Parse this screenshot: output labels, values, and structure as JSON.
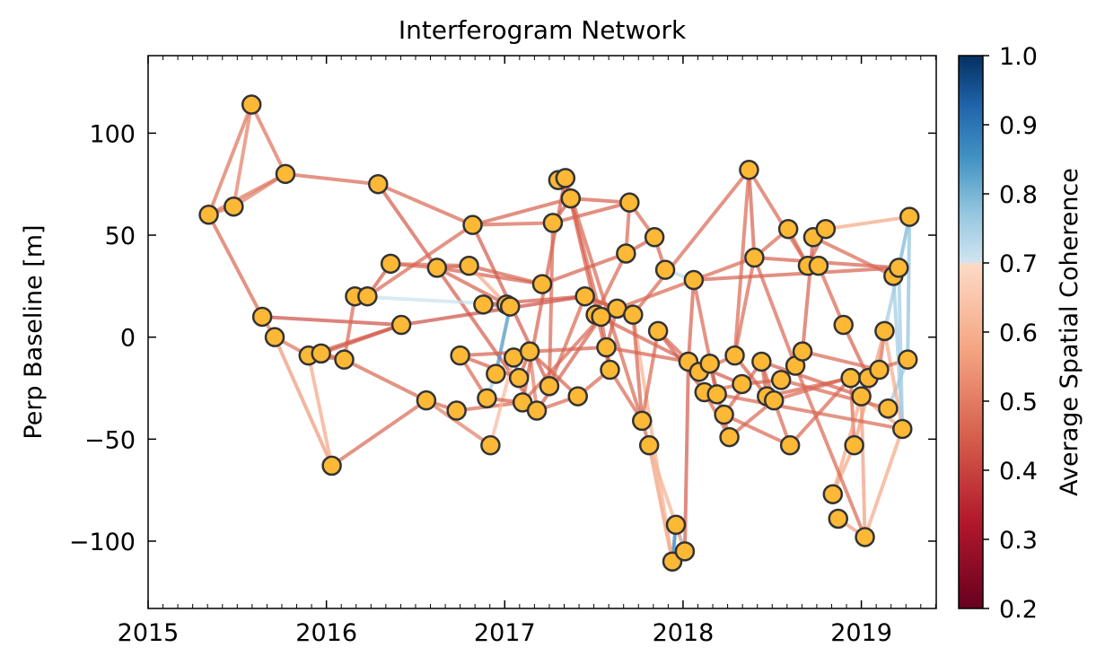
{
  "chart_data": {
    "type": "scatter",
    "title": "Interferogram Network",
    "xlabel": "",
    "ylabel": "Perp Baseline [m]",
    "xlim": [
      2015.0,
      2019.42
    ],
    "ylim": [
      -133,
      138
    ],
    "xticks": [
      2015,
      2016,
      2017,
      2018,
      2019
    ],
    "xtick_labels": [
      "2015",
      "2016",
      "2017",
      "2018",
      "2019"
    ],
    "yticks": [
      -100,
      -50,
      0,
      50,
      100
    ],
    "ytick_labels": [
      "−100",
      "−50",
      "0",
      "50",
      "100"
    ],
    "grid": false,
    "marker_fill": "#fdb836",
    "marker_edge": "#333333",
    "colorbar": {
      "label": "Average Spatial Coherence",
      "range": [
        0.2,
        1.0
      ],
      "ticks": [
        0.2,
        0.3,
        0.4,
        0.5,
        0.6,
        0.7,
        0.8,
        0.9,
        1.0
      ],
      "tick_labels": [
        "0.2",
        "0.3",
        "0.4",
        "0.5",
        "0.6",
        "0.7",
        "0.8",
        "0.9",
        "1.0"
      ],
      "colors_low": [
        "#67001f",
        "#b2182b",
        "#d6604d",
        "#f4a582",
        "#fddbc7"
      ],
      "colors_high": [
        "#d1e5f0",
        "#92c5de",
        "#4393c3",
        "#2166ac",
        "#053061"
      ],
      "split": 0.7
    },
    "points": [
      [
        2015.34,
        60
      ],
      [
        2015.48,
        64
      ],
      [
        2015.58,
        114
      ],
      [
        2015.64,
        10
      ],
      [
        2015.71,
        0
      ],
      [
        2015.77,
        80
      ],
      [
        2015.9,
        -9
      ],
      [
        2015.97,
        -8
      ],
      [
        2016.03,
        -63
      ],
      [
        2016.1,
        -11
      ],
      [
        2016.16,
        20
      ],
      [
        2016.23,
        20
      ],
      [
        2016.29,
        75
      ],
      [
        2016.36,
        36
      ],
      [
        2016.42,
        6
      ],
      [
        2016.56,
        -31
      ],
      [
        2016.62,
        34
      ],
      [
        2016.73,
        -36
      ],
      [
        2016.75,
        -9
      ],
      [
        2016.8,
        35
      ],
      [
        2016.82,
        55
      ],
      [
        2016.88,
        16
      ],
      [
        2016.9,
        -30
      ],
      [
        2016.92,
        -53
      ],
      [
        2016.95,
        -18
      ],
      [
        2017.01,
        16
      ],
      [
        2017.03,
        15
      ],
      [
        2017.05,
        -10
      ],
      [
        2017.08,
        -20
      ],
      [
        2017.1,
        -32
      ],
      [
        2017.14,
        -7
      ],
      [
        2017.18,
        -36
      ],
      [
        2017.21,
        26
      ],
      [
        2017.25,
        -24
      ],
      [
        2017.27,
        56
      ],
      [
        2017.3,
        77
      ],
      [
        2017.34,
        78
      ],
      [
        2017.37,
        68
      ],
      [
        2017.41,
        -29
      ],
      [
        2017.45,
        20
      ],
      [
        2017.51,
        11
      ],
      [
        2017.54,
        10
      ],
      [
        2017.57,
        -5
      ],
      [
        2017.59,
        -16
      ],
      [
        2017.63,
        14
      ],
      [
        2017.68,
        41
      ],
      [
        2017.7,
        66
      ],
      [
        2017.72,
        11
      ],
      [
        2017.77,
        -41
      ],
      [
        2017.81,
        -53
      ],
      [
        2017.84,
        49
      ],
      [
        2017.86,
        3
      ],
      [
        2017.9,
        33
      ],
      [
        2017.94,
        -110
      ],
      [
        2017.96,
        -92
      ],
      [
        2018.01,
        -105
      ],
      [
        2018.03,
        -12
      ],
      [
        2018.06,
        28
      ],
      [
        2018.09,
        -17
      ],
      [
        2018.12,
        -27
      ],
      [
        2018.15,
        -13
      ],
      [
        2018.19,
        -28
      ],
      [
        2018.23,
        -38
      ],
      [
        2018.26,
        -49
      ],
      [
        2018.29,
        -9
      ],
      [
        2018.33,
        -23
      ],
      [
        2018.37,
        82
      ],
      [
        2018.4,
        39
      ],
      [
        2018.44,
        -12
      ],
      [
        2018.47,
        -29
      ],
      [
        2018.51,
        -31
      ],
      [
        2018.55,
        -21
      ],
      [
        2018.59,
        53
      ],
      [
        2018.6,
        -53
      ],
      [
        2018.63,
        -14
      ],
      [
        2018.67,
        -7
      ],
      [
        2018.7,
        35
      ],
      [
        2018.73,
        49
      ],
      [
        2018.76,
        35
      ],
      [
        2018.8,
        53
      ],
      [
        2018.84,
        -77
      ],
      [
        2018.87,
        -89
      ],
      [
        2018.9,
        6
      ],
      [
        2018.94,
        -20
      ],
      [
        2018.96,
        -53
      ],
      [
        2019.0,
        -29
      ],
      [
        2019.02,
        -98
      ],
      [
        2019.04,
        -20
      ],
      [
        2019.1,
        -16
      ],
      [
        2019.13,
        3
      ],
      [
        2019.15,
        -35
      ],
      [
        2019.18,
        30
      ],
      [
        2019.21,
        34
      ],
      [
        2019.23,
        -45
      ],
      [
        2019.26,
        -11
      ],
      [
        2019.27,
        59
      ]
    ],
    "edges": [
      [
        0,
        1,
        0.5
      ],
      [
        0,
        2,
        0.48
      ],
      [
        1,
        2,
        0.5
      ],
      [
        1,
        5,
        0.5
      ],
      [
        0,
        5,
        0.48
      ],
      [
        0,
        3,
        0.46
      ],
      [
        5,
        12,
        0.46
      ],
      [
        12,
        31,
        0.44
      ],
      [
        3,
        4,
        0.5
      ],
      [
        4,
        8,
        0.55
      ],
      [
        2,
        5,
        0.48
      ],
      [
        3,
        14,
        0.42
      ],
      [
        4,
        6,
        0.48
      ],
      [
        6,
        9,
        0.46
      ],
      [
        7,
        9,
        0.45
      ],
      [
        6,
        7,
        0.44
      ],
      [
        7,
        14,
        0.44
      ],
      [
        8,
        15,
        0.46
      ],
      [
        8,
        6,
        0.58
      ],
      [
        9,
        15,
        0.46
      ],
      [
        10,
        11,
        0.45
      ],
      [
        10,
        25,
        0.71
      ],
      [
        11,
        13,
        0.44
      ],
      [
        13,
        16,
        0.46
      ],
      [
        13,
        19,
        0.48
      ],
      [
        11,
        20,
        0.46
      ],
      [
        14,
        39,
        0.42
      ],
      [
        16,
        19,
        0.46
      ],
      [
        16,
        32,
        0.45
      ],
      [
        16,
        25,
        0.45
      ],
      [
        19,
        25,
        0.58
      ],
      [
        19,
        32,
        0.45
      ],
      [
        12,
        20,
        0.46
      ],
      [
        20,
        33,
        0.44
      ],
      [
        20,
        34,
        0.46
      ],
      [
        20,
        37,
        0.45
      ],
      [
        34,
        37,
        0.44
      ],
      [
        35,
        37,
        0.46
      ],
      [
        34,
        46,
        0.45
      ],
      [
        37,
        46,
        0.45
      ],
      [
        46,
        45,
        0.46
      ],
      [
        46,
        50,
        0.46
      ],
      [
        50,
        52,
        0.45
      ],
      [
        45,
        50,
        0.45
      ],
      [
        33,
        39,
        0.46
      ],
      [
        39,
        44,
        0.45
      ],
      [
        39,
        47,
        0.44
      ],
      [
        25,
        26,
        0.72
      ],
      [
        26,
        24,
        0.85
      ],
      [
        24,
        22,
        0.75
      ],
      [
        22,
        18,
        0.46
      ],
      [
        18,
        42,
        0.45
      ],
      [
        15,
        17,
        0.46
      ],
      [
        17,
        29,
        0.46
      ],
      [
        15,
        23,
        0.5
      ],
      [
        23,
        27,
        0.62
      ],
      [
        27,
        28,
        0.88
      ],
      [
        28,
        30,
        0.45
      ],
      [
        30,
        31,
        0.5
      ],
      [
        29,
        36,
        0.45
      ],
      [
        31,
        41,
        0.45
      ],
      [
        36,
        41,
        0.46
      ],
      [
        41,
        43,
        0.46
      ],
      [
        43,
        48,
        0.46
      ],
      [
        48,
        49,
        0.46
      ],
      [
        49,
        53,
        0.56
      ],
      [
        53,
        54,
        0.9
      ],
      [
        54,
        55,
        0.8
      ],
      [
        49,
        55,
        0.6
      ],
      [
        47,
        53,
        0.6
      ],
      [
        48,
        51,
        0.46
      ],
      [
        51,
        59,
        0.45
      ],
      [
        51,
        58,
        0.46
      ],
      [
        58,
        60,
        0.45
      ],
      [
        60,
        62,
        0.78
      ],
      [
        60,
        61,
        0.46
      ],
      [
        61,
        63,
        0.46
      ],
      [
        63,
        70,
        0.46
      ],
      [
        62,
        68,
        0.46
      ],
      [
        68,
        70,
        0.46
      ],
      [
        68,
        69,
        0.45
      ],
      [
        70,
        73,
        0.46
      ],
      [
        73,
        83,
        0.46
      ],
      [
        83,
        84,
        0.46
      ],
      [
        84,
        80,
        0.58
      ],
      [
        80,
        85,
        0.58
      ],
      [
        85,
        86,
        0.56
      ],
      [
        86,
        93,
        0.58
      ],
      [
        81,
        86,
        0.56
      ],
      [
        93,
        92,
        0.76
      ],
      [
        92,
        95,
        0.8
      ],
      [
        95,
        94,
        0.78
      ],
      [
        90,
        94,
        0.76
      ],
      [
        89,
        92,
        0.76
      ],
      [
        89,
        88,
        0.46
      ],
      [
        88,
        87,
        0.78
      ],
      [
        87,
        85,
        0.46
      ],
      [
        82,
        87,
        0.45
      ],
      [
        78,
        82,
        0.46
      ],
      [
        77,
        79,
        0.46
      ],
      [
        79,
        95,
        0.58
      ],
      [
        76,
        79,
        0.46
      ],
      [
        72,
        76,
        0.46
      ],
      [
        66,
        67,
        0.45
      ],
      [
        66,
        76,
        0.46
      ],
      [
        67,
        72,
        0.46
      ],
      [
        64,
        67,
        0.46
      ],
      [
        64,
        69,
        0.45
      ],
      [
        74,
        75,
        0.46
      ],
      [
        75,
        77,
        0.45
      ],
      [
        71,
        75,
        0.46
      ],
      [
        71,
        74,
        0.46
      ],
      [
        65,
        71,
        0.45
      ],
      [
        59,
        65,
        0.46
      ],
      [
        56,
        65,
        0.44
      ],
      [
        56,
        57,
        0.45
      ],
      [
        52,
        57,
        0.72
      ],
      [
        57,
        92,
        0.45
      ],
      [
        67,
        92,
        0.45
      ],
      [
        40,
        45,
        0.46
      ],
      [
        40,
        44,
        0.45
      ],
      [
        40,
        56,
        0.45
      ],
      [
        42,
        56,
        0.45
      ],
      [
        42,
        43,
        0.44
      ],
      [
        38,
        43,
        0.46
      ],
      [
        30,
        38,
        0.45
      ],
      [
        38,
        31,
        0.46
      ],
      [
        21,
        26,
        0.45
      ],
      [
        21,
        25,
        0.78
      ],
      [
        21,
        39,
        0.44
      ],
      [
        44,
        67,
        0.46
      ],
      [
        47,
        66,
        0.46
      ],
      [
        67,
        74,
        0.46
      ],
      [
        74,
        86,
        0.46
      ],
      [
        69,
        83,
        0.45
      ],
      [
        83,
        88,
        0.46
      ],
      [
        84,
        89,
        0.56
      ],
      [
        89,
        93,
        0.58
      ],
      [
        85,
        93,
        0.58
      ],
      [
        58,
        64,
        0.46
      ],
      [
        64,
        66,
        0.46
      ],
      [
        9,
        10,
        0.46
      ],
      [
        6,
        14,
        0.44
      ],
      [
        36,
        48,
        0.46
      ],
      [
        22,
        29,
        0.45
      ],
      [
        29,
        41,
        0.46
      ],
      [
        55,
        56,
        0.44
      ],
      [
        68,
        85,
        0.45
      ],
      [
        75,
        88,
        0.46
      ],
      [
        33,
        34,
        0.46
      ],
      [
        32,
        45,
        0.45
      ],
      [
        18,
        28,
        0.45
      ],
      [
        59,
        63,
        0.46
      ],
      [
        62,
        73,
        0.46
      ],
      [
        71,
        90,
        0.46
      ],
      [
        77,
        91,
        0.46
      ],
      [
        70,
        94,
        0.46
      ],
      [
        61,
        93,
        0.46
      ],
      [
        36,
        43,
        0.45
      ],
      [
        47,
        48,
        0.45
      ],
      [
        57,
        61,
        0.46
      ],
      [
        44,
        42,
        0.45
      ],
      [
        91,
        93,
        0.76
      ],
      [
        27,
        30,
        0.46
      ]
    ]
  }
}
